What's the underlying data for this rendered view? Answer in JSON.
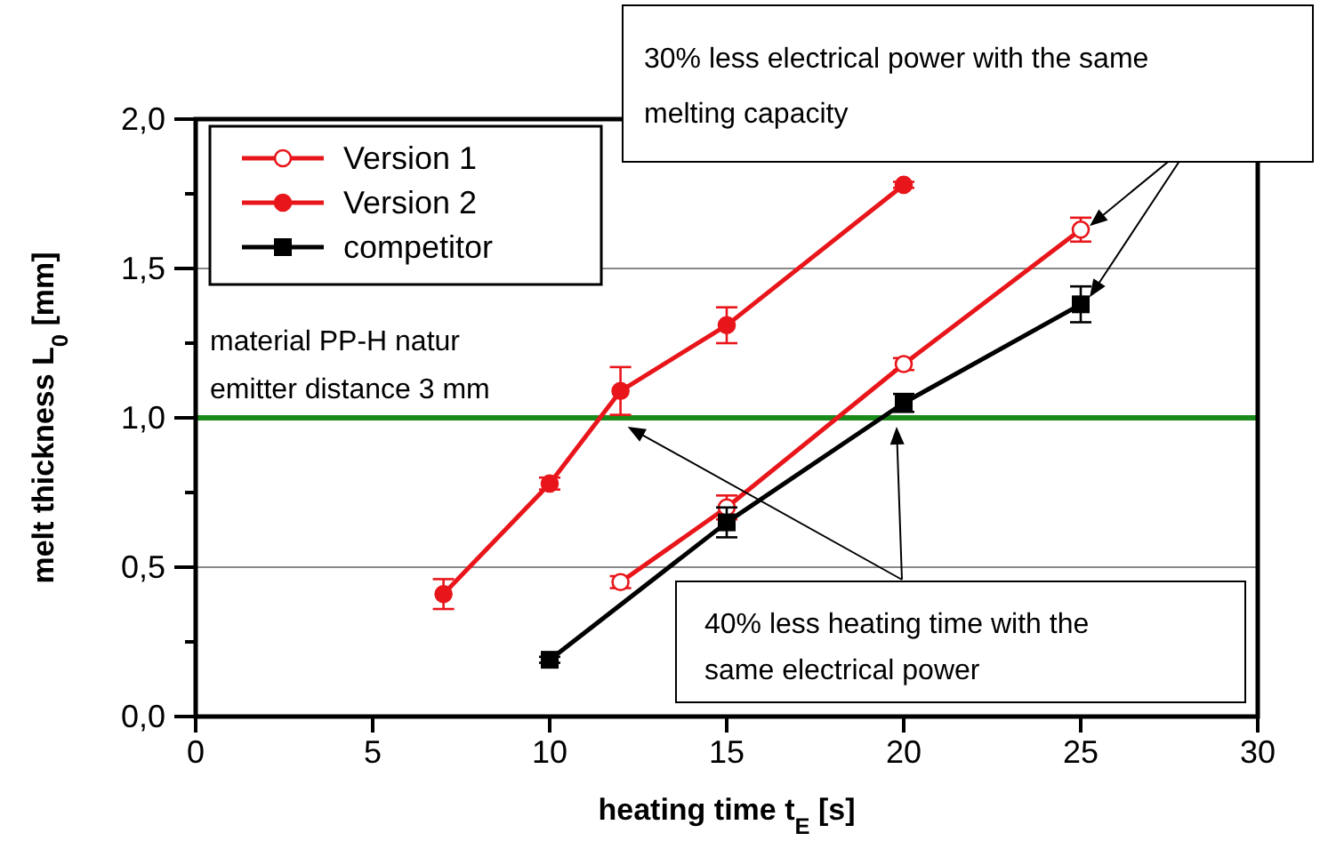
{
  "chart_data": {
    "type": "line",
    "xlabel": "heating time  t$_{E}$ [s]",
    "ylabel": "melt thickness  L$_{0}$ [mm]",
    "xlim": [
      0,
      30
    ],
    "xticks": [
      0,
      5,
      10,
      15,
      20,
      25,
      30
    ],
    "ylim": [
      0,
      2
    ],
    "yticks": [
      {
        "value": 0,
        "label": "0,0"
      },
      {
        "value": 0.25,
        "label": null
      },
      {
        "value": 0.5,
        "label": "0,5"
      },
      {
        "value": 0.75,
        "label": null
      },
      {
        "value": 1,
        "label": "1,0"
      },
      {
        "value": 1.25,
        "label": null
      },
      {
        "value": 1.5,
        "label": "1,5"
      },
      {
        "value": 1.75,
        "label": null
      },
      {
        "value": 2,
        "label": "2,0"
      }
    ],
    "grid": "y",
    "legend": "top left",
    "line_style": "solid",
    "series": [
      {
        "name": "Version 1",
        "color": "#e8161b",
        "marker": "circle",
        "x": [
          12,
          15,
          20,
          25
        ],
        "values": [
          0.45,
          0.7,
          1.18,
          1.63
        ],
        "errors": [
          0.02,
          0.04,
          0.02,
          0.04
        ]
      },
      {
        "name": "Version 2",
        "color": "#e8161b",
        "marker": "circle",
        "x": [
          7,
          10,
          12,
          15,
          20
        ],
        "values": [
          0.41,
          0.78,
          1.09,
          1.31,
          1.78
        ],
        "errors": [
          0.05,
          0.02,
          0.08,
          0.06,
          0.01
        ]
      },
      {
        "name": "competitor",
        "color": "#000000",
        "marker": "square",
        "x": [
          10,
          15,
          20,
          25
        ],
        "values": [
          0.19,
          0.65,
          1.05,
          1.38
        ],
        "errors": [
          0.01,
          0.05,
          0.03,
          0.06
        ]
      }
    ],
    "ref_lines": [
      {
        "axis": "y",
        "value": 1,
        "color": "#1a8a1a"
      }
    ],
    "annotations": [
      "material PP-H natur\nemitter distance 3 mm",
      "30% less electrical power with the same\nmelting capacity",
      "40% less heating time with the\nsame electrical power"
    ]
  }
}
